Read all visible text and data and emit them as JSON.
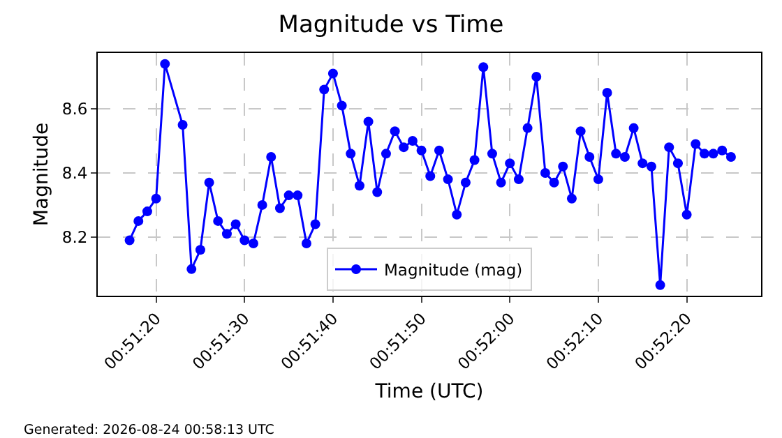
{
  "chart_data": {
    "type": "line",
    "title": "Magnitude vs Time",
    "xlabel": "Time (UTC)",
    "ylabel": "Magnitude",
    "annotations": [
      "Generated: 2026-08-24 00:58:13 UTC"
    ],
    "x": [
      "2026-08-24T00:51:17",
      "2026-08-24T00:51:18",
      "2026-08-24T00:51:19",
      "2026-08-24T00:51:20",
      "2026-08-24T00:51:21",
      "2026-08-24T00:51:23",
      "2026-08-24T00:51:24",
      "2026-08-24T00:51:25",
      "2026-08-24T00:51:26",
      "2026-08-24T00:51:27",
      "2026-08-24T00:51:28",
      "2026-08-24T00:51:29",
      "2026-08-24T00:51:30",
      "2026-08-24T00:51:31",
      "2026-08-24T00:51:32",
      "2026-08-24T00:51:33",
      "2026-08-24T00:51:34",
      "2026-08-24T00:51:35",
      "2026-08-24T00:51:36",
      "2026-08-24T00:51:37",
      "2026-08-24T00:51:38",
      "2026-08-24T00:51:39",
      "2026-08-24T00:51:40",
      "2026-08-24T00:51:41",
      "2026-08-24T00:51:42",
      "2026-08-24T00:51:43",
      "2026-08-24T00:51:44",
      "2026-08-24T00:51:45",
      "2026-08-24T00:51:46",
      "2026-08-24T00:51:47",
      "2026-08-24T00:51:48",
      "2026-08-24T00:51:49",
      "2026-08-24T00:51:50",
      "2026-08-24T00:51:51",
      "2026-08-24T00:51:52",
      "2026-08-24T00:51:53",
      "2026-08-24T00:51:54",
      "2026-08-24T00:51:55",
      "2026-08-24T00:51:56",
      "2026-08-24T00:51:57",
      "2026-08-24T00:51:58",
      "2026-08-24T00:51:59",
      "2026-08-24T00:52:00",
      "2026-08-24T00:52:01",
      "2026-08-24T00:52:02",
      "2026-08-24T00:52:03",
      "2026-08-24T00:52:04",
      "2026-08-24T00:52:05",
      "2026-08-24T00:52:06",
      "2026-08-24T00:52:07",
      "2026-08-24T00:52:08",
      "2026-08-24T00:52:09",
      "2026-08-24T00:52:10",
      "2026-08-24T00:52:11",
      "2026-08-24T00:52:12",
      "2026-08-24T00:52:13",
      "2026-08-24T00:52:14",
      "2026-08-24T00:52:15",
      "2026-08-24T00:52:16",
      "2026-08-24T00:52:17",
      "2026-08-24T00:52:18",
      "2026-08-24T00:52:19",
      "2026-08-24T00:52:20",
      "2026-08-24T00:52:21",
      "2026-08-24T00:52:22",
      "2026-08-24T00:52:23",
      "2026-08-24T00:52:24",
      "2026-08-24T00:52:25"
    ],
    "series": [
      {
        "name": "Magnitude (mag)",
        "color": "#0000ff",
        "values": [
          8.19,
          8.25,
          8.28,
          8.32,
          8.74,
          8.55,
          8.1,
          8.16,
          8.37,
          8.25,
          8.21,
          8.24,
          8.19,
          8.18,
          8.3,
          8.45,
          8.29,
          8.33,
          8.33,
          8.18,
          8.24,
          8.66,
          8.71,
          8.61,
          8.46,
          8.36,
          8.56,
          8.34,
          8.46,
          8.53,
          8.48,
          8.5,
          8.47,
          8.39,
          8.47,
          8.38,
          8.27,
          8.37,
          8.44,
          8.73,
          8.46,
          8.37,
          8.43,
          8.38,
          8.54,
          8.7,
          8.4,
          8.37,
          8.42,
          8.32,
          8.53,
          8.45,
          8.38,
          8.65,
          8.46,
          8.45,
          8.54,
          8.43,
          8.42,
          8.05,
          8.48,
          8.43,
          8.27,
          8.49,
          8.46,
          8.46,
          8.47,
          8.45
        ]
      }
    ],
    "xlim": [
      "2026-08-24T00:51:13.4",
      "2026-08-24T00:52:28.4"
    ],
    "xticks": [
      {
        "value": "2026-08-24T00:51:20",
        "label": "00:51:20"
      },
      {
        "value": "2026-08-24T00:51:30",
        "label": "00:51:30"
      },
      {
        "value": "2026-08-24T00:51:40",
        "label": "00:51:40"
      },
      {
        "value": "2026-08-24T00:51:50",
        "label": "00:51:50"
      },
      {
        "value": "2026-08-24T00:52:00",
        "label": "00:52:00"
      },
      {
        "value": "2026-08-24T00:52:10",
        "label": "00:52:10"
      },
      {
        "value": "2026-08-24T00:52:20",
        "label": "00:52:20"
      }
    ],
    "ylim": [
      8.017,
      8.774
    ],
    "yticks": [
      8.2,
      8.4,
      8.6
    ],
    "grid": true,
    "legend": "bottom",
    "marker": "circle",
    "line_style": "solid"
  }
}
